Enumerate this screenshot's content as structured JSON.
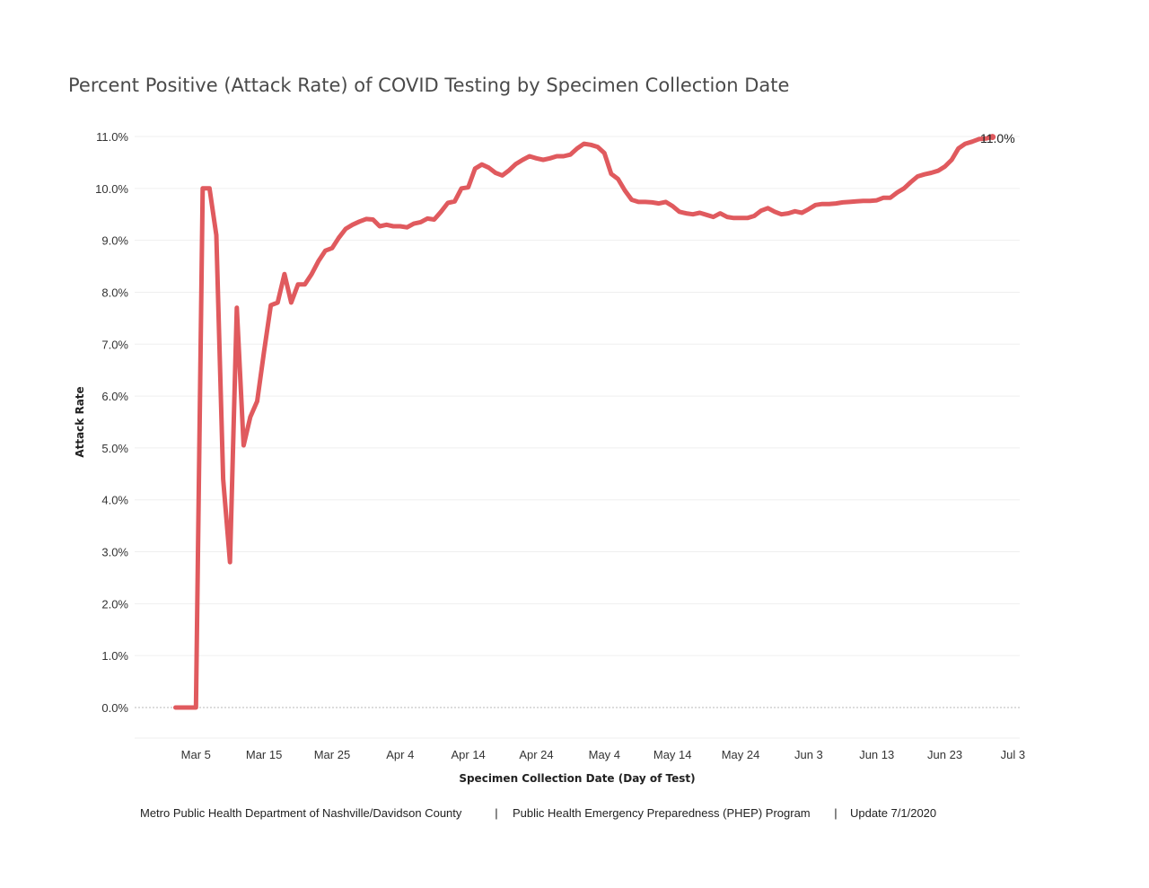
{
  "chart_data": {
    "type": "line",
    "title": "Percent Positive (Attack Rate) of COVID Testing by Specimen Collection Date",
    "xlabel": "Specimen Collection Date (Day of Test)",
    "ylabel": "Attack Rate",
    "x_tick_labels": [
      "Mar 5",
      "Mar 15",
      "Mar 25",
      "Apr 4",
      "Apr 14",
      "Apr 24",
      "May 4",
      "May 14",
      "May 24",
      "Jun 3",
      "Jun 13",
      "Jun 23",
      "Jul 3"
    ],
    "x_tick_dates": [
      "2020-03-05",
      "2020-03-15",
      "2020-03-25",
      "2020-04-04",
      "2020-04-14",
      "2020-04-24",
      "2020-05-04",
      "2020-05-14",
      "2020-05-24",
      "2020-06-03",
      "2020-06-13",
      "2020-06-23",
      "2020-07-03"
    ],
    "xlim": [
      "2020-02-25",
      "2020-07-04"
    ],
    "y_tick_labels": [
      "0.0%",
      "1.0%",
      "2.0%",
      "3.0%",
      "4.0%",
      "5.0%",
      "6.0%",
      "7.0%",
      "8.0%",
      "9.0%",
      "10.0%",
      "11.0%"
    ],
    "ylim": [
      -0.6,
      11.0
    ],
    "y_unit": "%",
    "grid": "horizontal",
    "line_color": "#e05a5e",
    "end_label": "11.0%",
    "series": [
      {
        "points": [
          [
            "2020-03-02",
            0.0
          ],
          [
            "2020-03-03",
            0.0
          ],
          [
            "2020-03-04",
            0.0
          ],
          [
            "2020-03-05",
            0.0
          ],
          [
            "2020-03-06",
            10.0
          ],
          [
            "2020-03-07",
            10.0
          ],
          [
            "2020-03-08",
            9.1
          ],
          [
            "2020-03-09",
            4.4
          ],
          [
            "2020-03-10",
            2.8
          ],
          [
            "2020-03-11",
            7.7
          ],
          [
            "2020-03-12",
            5.05
          ],
          [
            "2020-03-13",
            5.6
          ],
          [
            "2020-03-14",
            5.9
          ],
          [
            "2020-03-15",
            6.85
          ],
          [
            "2020-03-16",
            7.75
          ],
          [
            "2020-03-17",
            7.8
          ],
          [
            "2020-03-18",
            8.35
          ],
          [
            "2020-03-19",
            7.8
          ],
          [
            "2020-03-20",
            8.15
          ],
          [
            "2020-03-21",
            8.15
          ],
          [
            "2020-03-22",
            8.35
          ],
          [
            "2020-03-23",
            8.6
          ],
          [
            "2020-03-24",
            8.8
          ],
          [
            "2020-03-25",
            8.85
          ],
          [
            "2020-03-26",
            9.05
          ],
          [
            "2020-03-27",
            9.22
          ],
          [
            "2020-03-28",
            9.3
          ],
          [
            "2020-03-29",
            9.36
          ],
          [
            "2020-03-30",
            9.41
          ],
          [
            "2020-03-31",
            9.4
          ],
          [
            "2020-04-01",
            9.27
          ],
          [
            "2020-04-02",
            9.3
          ],
          [
            "2020-04-03",
            9.27
          ],
          [
            "2020-04-04",
            9.27
          ],
          [
            "2020-04-05",
            9.25
          ],
          [
            "2020-04-06",
            9.32
          ],
          [
            "2020-04-07",
            9.35
          ],
          [
            "2020-04-08",
            9.42
          ],
          [
            "2020-04-09",
            9.4
          ],
          [
            "2020-04-10",
            9.55
          ],
          [
            "2020-04-11",
            9.72
          ],
          [
            "2020-04-12",
            9.75
          ],
          [
            "2020-04-13",
            10.0
          ],
          [
            "2020-04-14",
            10.02
          ],
          [
            "2020-04-15",
            10.38
          ],
          [
            "2020-04-16",
            10.46
          ],
          [
            "2020-04-17",
            10.4
          ],
          [
            "2020-04-18",
            10.3
          ],
          [
            "2020-04-19",
            10.25
          ],
          [
            "2020-04-20",
            10.35
          ],
          [
            "2020-04-21",
            10.47
          ],
          [
            "2020-04-22",
            10.55
          ],
          [
            "2020-04-23",
            10.62
          ],
          [
            "2020-04-24",
            10.58
          ],
          [
            "2020-04-25",
            10.55
          ],
          [
            "2020-04-26",
            10.58
          ],
          [
            "2020-04-27",
            10.62
          ],
          [
            "2020-04-28",
            10.62
          ],
          [
            "2020-04-29",
            10.65
          ],
          [
            "2020-04-30",
            10.77
          ],
          [
            "2020-05-01",
            10.86
          ],
          [
            "2020-05-02",
            10.84
          ],
          [
            "2020-05-03",
            10.8
          ],
          [
            "2020-05-04",
            10.68
          ],
          [
            "2020-05-05",
            10.28
          ],
          [
            "2020-05-06",
            10.18
          ],
          [
            "2020-05-07",
            9.96
          ],
          [
            "2020-05-08",
            9.78
          ],
          [
            "2020-05-09",
            9.74
          ],
          [
            "2020-05-10",
            9.74
          ],
          [
            "2020-05-11",
            9.73
          ],
          [
            "2020-05-12",
            9.71
          ],
          [
            "2020-05-13",
            9.74
          ],
          [
            "2020-05-14",
            9.66
          ],
          [
            "2020-05-15",
            9.55
          ],
          [
            "2020-05-16",
            9.52
          ],
          [
            "2020-05-17",
            9.5
          ],
          [
            "2020-05-18",
            9.53
          ],
          [
            "2020-05-19",
            9.49
          ],
          [
            "2020-05-20",
            9.45
          ],
          [
            "2020-05-21",
            9.52
          ],
          [
            "2020-05-22",
            9.45
          ],
          [
            "2020-05-23",
            9.43
          ],
          [
            "2020-05-24",
            9.43
          ],
          [
            "2020-05-25",
            9.43
          ],
          [
            "2020-05-26",
            9.47
          ],
          [
            "2020-05-27",
            9.57
          ],
          [
            "2020-05-28",
            9.62
          ],
          [
            "2020-05-29",
            9.55
          ],
          [
            "2020-05-30",
            9.5
          ],
          [
            "2020-05-31",
            9.52
          ],
          [
            "2020-06-01",
            9.56
          ],
          [
            "2020-06-02",
            9.53
          ],
          [
            "2020-06-03",
            9.6
          ],
          [
            "2020-06-04",
            9.68
          ],
          [
            "2020-06-05",
            9.7
          ],
          [
            "2020-06-06",
            9.7
          ],
          [
            "2020-06-07",
            9.71
          ],
          [
            "2020-06-08",
            9.73
          ],
          [
            "2020-06-09",
            9.74
          ],
          [
            "2020-06-10",
            9.75
          ],
          [
            "2020-06-11",
            9.76
          ],
          [
            "2020-06-12",
            9.76
          ],
          [
            "2020-06-13",
            9.77
          ],
          [
            "2020-06-14",
            9.82
          ],
          [
            "2020-06-15",
            9.82
          ],
          [
            "2020-06-16",
            9.92
          ],
          [
            "2020-06-17",
            10.0
          ],
          [
            "2020-06-18",
            10.12
          ],
          [
            "2020-06-19",
            10.23
          ],
          [
            "2020-06-20",
            10.27
          ],
          [
            "2020-06-21",
            10.3
          ],
          [
            "2020-06-22",
            10.34
          ],
          [
            "2020-06-23",
            10.42
          ],
          [
            "2020-06-24",
            10.55
          ],
          [
            "2020-06-25",
            10.77
          ],
          [
            "2020-06-26",
            10.86
          ],
          [
            "2020-06-27",
            10.9
          ],
          [
            "2020-06-28",
            10.95
          ],
          [
            "2020-06-29",
            10.96
          ],
          [
            "2020-06-30",
            10.99
          ]
        ]
      }
    ]
  },
  "footer": {
    "department": "Metro Public Health Department of Nashville/Davidson County",
    "separator": "|",
    "program": "Public Health Emergency Preparedness (PHEP) Program",
    "update": "Update 7/1/2020"
  }
}
